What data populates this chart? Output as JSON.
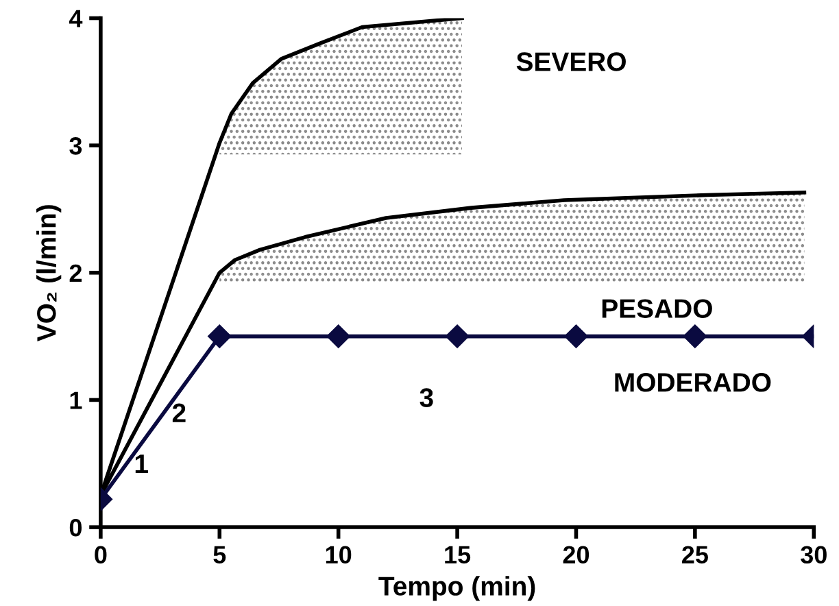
{
  "chart_data": {
    "type": "line",
    "xlabel": "Tempo (min)",
    "ylabel": "VO₂ (l/min)",
    "xlim": [
      0,
      30
    ],
    "xticks": [
      0,
      5,
      10,
      15,
      20,
      25,
      30
    ],
    "ylim": [
      0,
      4
    ],
    "yticks": [
      0,
      1,
      2,
      3,
      4
    ],
    "grid": false,
    "series": [
      {
        "color": "#000000",
        "marker": "none",
        "x": [
          0,
          5,
          5.5,
          6.4,
          7.6,
          9.2,
          11.0,
          15.2
        ],
        "values": [
          0.25,
          3.02,
          3.25,
          3.49,
          3.68,
          3.8,
          3.93,
          4.0
        ],
        "lower": [
          null,
          2.93,
          2.93,
          2.93,
          2.93,
          2.93,
          2.93,
          2.93
        ],
        "upper": [
          null,
          3.02,
          3.25,
          3.49,
          3.68,
          3.8,
          3.93,
          4.0
        ]
      },
      {
        "color": "#000000",
        "marker": "none",
        "x": [
          0,
          5,
          5.65,
          6.7,
          8.6,
          12,
          15.6,
          19.5,
          25.5,
          29.6
        ],
        "values": [
          0.25,
          2.0,
          2.1,
          2.18,
          2.28,
          2.43,
          2.51,
          2.57,
          2.61,
          2.63
        ],
        "lower": [
          null,
          1.93,
          1.93,
          1.93,
          1.93,
          1.93,
          1.93,
          1.93,
          1.93,
          1.93
        ],
        "upper": [
          null,
          2.0,
          2.1,
          2.18,
          2.28,
          2.43,
          2.51,
          2.57,
          2.61,
          2.63
        ]
      },
      {
        "color": "#0a0a40",
        "marker": "diamond",
        "x": [
          0,
          5,
          10,
          15,
          20,
          25,
          30
        ],
        "values": [
          0.22,
          1.5,
          1.5,
          1.5,
          1.5,
          1.5,
          1.5
        ]
      }
    ],
    "annotations": [
      "SEVERO",
      "PESADO",
      "MODERADO",
      "1",
      "2",
      "3"
    ]
  }
}
